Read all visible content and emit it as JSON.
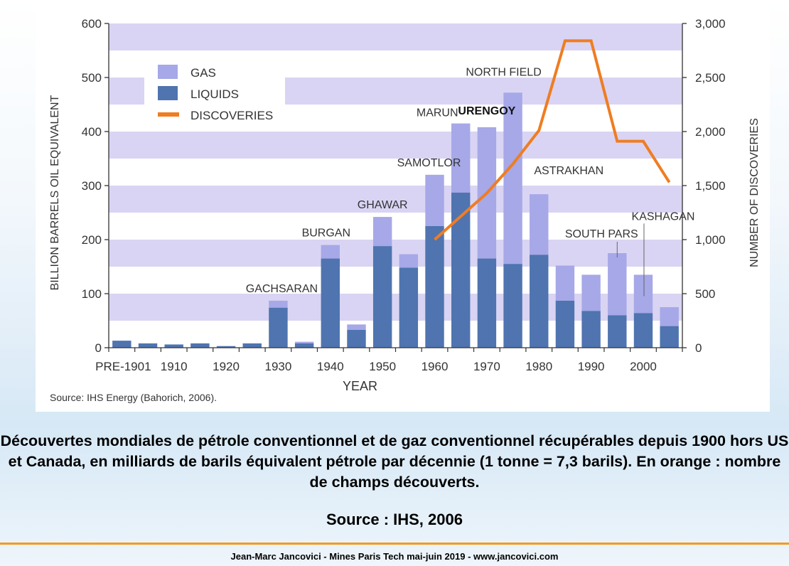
{
  "caption": "Découvertes mondiales de pétrole conventionnel et de gaz conventionnel récupérables depuis 1900 hors US et Canada, en milliards de barils équivalent pétrole par décennie  (1 tonne = 7,3 barils). En orange : nombre de champs découverts.",
  "source": "Source : IHS, 2006",
  "footer": "Jean-Marc Jancovici - Mines Paris Tech mai-juin 2019 - www.jancovici.com",
  "chart_data": {
    "type": "bar",
    "title": "",
    "xlabel": "YEAR",
    "ylabel_left": "BILLION BARRELS OIL EQUIVALENT",
    "ylabel_right": "NUMBER OF DISCOVERIES",
    "source_note": "Source: IHS Energy (Bahorich, 2006).",
    "ylim_left": [
      0,
      600
    ],
    "ylim_right": [
      0,
      3000
    ],
    "yticks_left": [
      "0",
      "100",
      "200",
      "300",
      "400",
      "500",
      "600"
    ],
    "yticks_right": [
      "0",
      "500",
      "1,000",
      "1,500",
      "2,000",
      "2,500",
      "3,000"
    ],
    "x_tick_labels": [
      "PRE-1901",
      "1910",
      "1920",
      "1930",
      "1940",
      "1950",
      "1960",
      "1970",
      "1980",
      "1990",
      "2000"
    ],
    "stacked": true,
    "legend_position": "top-left",
    "colors": {
      "gas": "#a6a8e8",
      "liquids": "#4f74b0",
      "discoveries": "#ef7d22",
      "band": "#d9d4f3"
    },
    "legend": [
      "GAS",
      "LIQUIDS",
      "DISCOVERIES"
    ],
    "bars": [
      {
        "period": "PRE-1901",
        "liquids": 13,
        "total": 13
      },
      {
        "period": "1901-05",
        "liquids": 8,
        "total": 8
      },
      {
        "period": "1906-10",
        "liquids": 6,
        "total": 6
      },
      {
        "period": "1911-15",
        "liquids": 8,
        "total": 8
      },
      {
        "period": "1916-20",
        "liquids": 3,
        "total": 3
      },
      {
        "period": "1921-25",
        "liquids": 8,
        "total": 8
      },
      {
        "period": "1926-30",
        "liquids": 74,
        "total": 87
      },
      {
        "period": "1931-35",
        "liquids": 8,
        "total": 11
      },
      {
        "period": "1936-40",
        "liquids": 165,
        "total": 190
      },
      {
        "period": "1941-45",
        "liquids": 33,
        "total": 43
      },
      {
        "period": "1946-50",
        "liquids": 188,
        "total": 242
      },
      {
        "period": "1951-55",
        "liquids": 148,
        "total": 173
      },
      {
        "period": "1956-60",
        "liquids": 225,
        "total": 320
      },
      {
        "period": "1961-65",
        "liquids": 287,
        "total": 415
      },
      {
        "period": "1966-70",
        "liquids": 165,
        "total": 408
      },
      {
        "period": "1971-75",
        "liquids": 155,
        "total": 472
      },
      {
        "period": "1976-80",
        "liquids": 172,
        "total": 284
      },
      {
        "period": "1981-85",
        "liquids": 87,
        "total": 152
      },
      {
        "period": "1986-90",
        "liquids": 68,
        "total": 135
      },
      {
        "period": "1991-95",
        "liquids": 60,
        "total": 175
      },
      {
        "period": "1996-2000",
        "liquids": 64,
        "total": 135
      },
      {
        "period": "2001-05",
        "liquids": 40,
        "total": 75
      }
    ],
    "discoveries": [
      {
        "period": "1956-60",
        "value": 1000
      },
      {
        "period": "1966-70",
        "value": 1430
      },
      {
        "period": "1971-75",
        "value": 1700
      },
      {
        "period": "1976-80",
        "value": 2010
      },
      {
        "period": "1981-85",
        "value": 2840
      },
      {
        "period": "1986-90",
        "value": 2840
      },
      {
        "period": "1991-95",
        "value": 1910
      },
      {
        "period": "1996-2000",
        "value": 1910
      },
      {
        "period": "2001-05",
        "value": 1530
      }
    ],
    "annotations": [
      {
        "text": "GACHSARAN",
        "period": "1926-30",
        "bold": false
      },
      {
        "text": "BURGAN",
        "period": "1936-40",
        "bold": false
      },
      {
        "text": "GHAWAR",
        "period": "1946-50",
        "bold": false
      },
      {
        "text": "SAMOTLOR",
        "period": "1956-60",
        "bold": false
      },
      {
        "text": "MARUN",
        "period": "1961-65",
        "bold": false
      },
      {
        "text": "URENGOY",
        "period": "1966-70",
        "bold": true
      },
      {
        "text": "NORTH FIELD",
        "period": "1971-75",
        "bold": false
      },
      {
        "text": "ASTRAKHAN",
        "period": "1976-80",
        "bold": false
      },
      {
        "text": "SOUTH PARS",
        "period": "1991-95",
        "bold": false
      },
      {
        "text": "KASHAGAN",
        "period": "1996-2000",
        "bold": false
      }
    ]
  }
}
